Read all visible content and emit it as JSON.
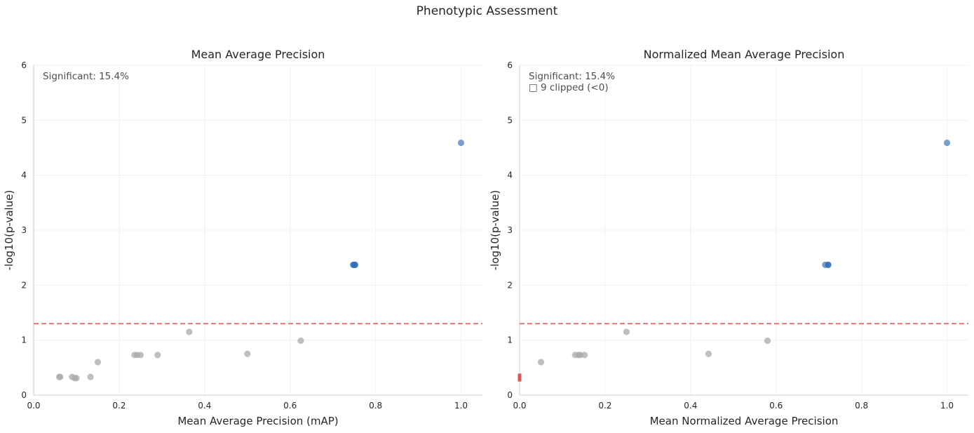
{
  "figure": {
    "title": "Phenotypic Assessment"
  },
  "colors": {
    "nonsignificant": "#a9a9a9",
    "significant": "#2f6db5",
    "threshold": "#e07070",
    "clipped": "#d9534f"
  },
  "chart_data": [
    {
      "type": "scatter",
      "title": "Mean Average Precision",
      "xlabel": "Mean Average Precision (mAP)",
      "ylabel": "-log10(p-value)",
      "xlim": [
        0.0,
        1.05
      ],
      "ylim": [
        0,
        6
      ],
      "xticks": [
        "0.0",
        "0.2",
        "0.4",
        "0.6",
        "0.8",
        "1.0"
      ],
      "yticks": [
        "0",
        "1",
        "2",
        "3",
        "4",
        "5",
        "6"
      ],
      "grid": true,
      "threshold_y": 1.3,
      "annotation_lines": [
        "Significant: 15.4%"
      ],
      "points": [
        {
          "x": 0.062,
          "y": 0.33,
          "significant": false
        },
        {
          "x": 0.06,
          "y": 0.33,
          "significant": false
        },
        {
          "x": 0.09,
          "y": 0.33,
          "significant": false
        },
        {
          "x": 0.096,
          "y": 0.31,
          "significant": false
        },
        {
          "x": 0.1,
          "y": 0.31,
          "significant": false
        },
        {
          "x": 0.133,
          "y": 0.33,
          "significant": false
        },
        {
          "x": 0.15,
          "y": 0.6,
          "significant": false
        },
        {
          "x": 0.236,
          "y": 0.73,
          "significant": false
        },
        {
          "x": 0.242,
          "y": 0.73,
          "significant": false
        },
        {
          "x": 0.25,
          "y": 0.73,
          "significant": false
        },
        {
          "x": 0.29,
          "y": 0.73,
          "significant": false
        },
        {
          "x": 0.364,
          "y": 1.15,
          "significant": false
        },
        {
          "x": 0.5,
          "y": 0.75,
          "significant": false
        },
        {
          "x": 0.625,
          "y": 0.99,
          "significant": false
        },
        {
          "x": 0.748,
          "y": 2.37,
          "significant": true
        },
        {
          "x": 0.752,
          "y": 2.37,
          "significant": true
        },
        {
          "x": 1.0,
          "y": 4.59,
          "significant": true,
          "light": true
        }
      ]
    },
    {
      "type": "scatter",
      "title": "Normalized Mean Average Precision",
      "xlabel": "Mean Normalized Average Precision",
      "ylabel": "-log10(p-value)",
      "xlim": [
        0.0,
        1.05
      ],
      "ylim": [
        0,
        6
      ],
      "xticks": [
        "0.0",
        "0.2",
        "0.4",
        "0.6",
        "0.8",
        "1.0"
      ],
      "yticks": [
        "0",
        "1",
        "2",
        "3",
        "4",
        "5",
        "6"
      ],
      "grid": true,
      "threshold_y": 1.3,
      "annotation_lines": [
        "Significant: 15.4%",
        "□ 9 clipped (<0)"
      ],
      "points": [
        {
          "x": 0.0,
          "y": 0.33,
          "clipped": true
        },
        {
          "x": 0.0,
          "y": 0.31,
          "clipped": true
        },
        {
          "x": 0.05,
          "y": 0.6,
          "significant": false
        },
        {
          "x": 0.13,
          "y": 0.73,
          "significant": false
        },
        {
          "x": 0.138,
          "y": 0.73,
          "significant": false
        },
        {
          "x": 0.142,
          "y": 0.73,
          "significant": false
        },
        {
          "x": 0.152,
          "y": 0.73,
          "significant": false
        },
        {
          "x": 0.25,
          "y": 1.15,
          "significant": false
        },
        {
          "x": 0.442,
          "y": 0.75,
          "significant": false
        },
        {
          "x": 0.58,
          "y": 0.99,
          "significant": false
        },
        {
          "x": 0.715,
          "y": 2.37,
          "significant": true,
          "light": true
        },
        {
          "x": 0.722,
          "y": 2.37,
          "significant": true
        },
        {
          "x": 1.0,
          "y": 4.59,
          "significant": true,
          "light": true
        }
      ]
    }
  ]
}
